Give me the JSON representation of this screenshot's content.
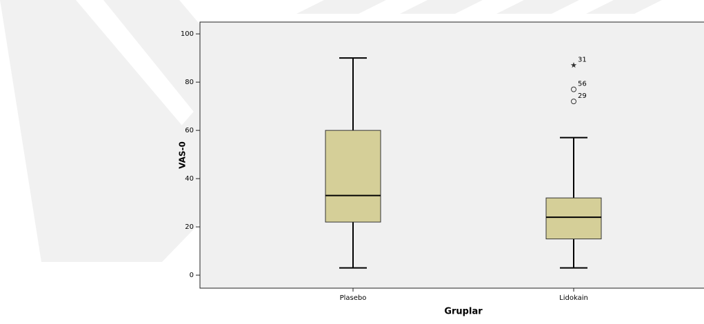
{
  "chart_data": {
    "type": "box",
    "x_label": "Gruplar",
    "y_label": "VAS-0",
    "categories": [
      "Plasebo",
      "Lidokain"
    ],
    "boxes": [
      {
        "min": 3,
        "q1": 22,
        "median": 33,
        "q3": 60,
        "max": 90,
        "outliers": [],
        "extremes": []
      },
      {
        "min": 3,
        "q1": 15,
        "median": 24,
        "q3": 32,
        "max": 57,
        "outliers": [
          {
            "value": 72,
            "case": "29"
          },
          {
            "value": 77,
            "case": "56"
          }
        ],
        "extremes": [
          {
            "value": 87,
            "case": "31"
          }
        ]
      }
    ],
    "color": "#d5cf98",
    "ylim": [
      -5.4,
      104.9
    ],
    "yticks": [
      0,
      20,
      40,
      60,
      80,
      100
    ],
    "grid": false
  }
}
